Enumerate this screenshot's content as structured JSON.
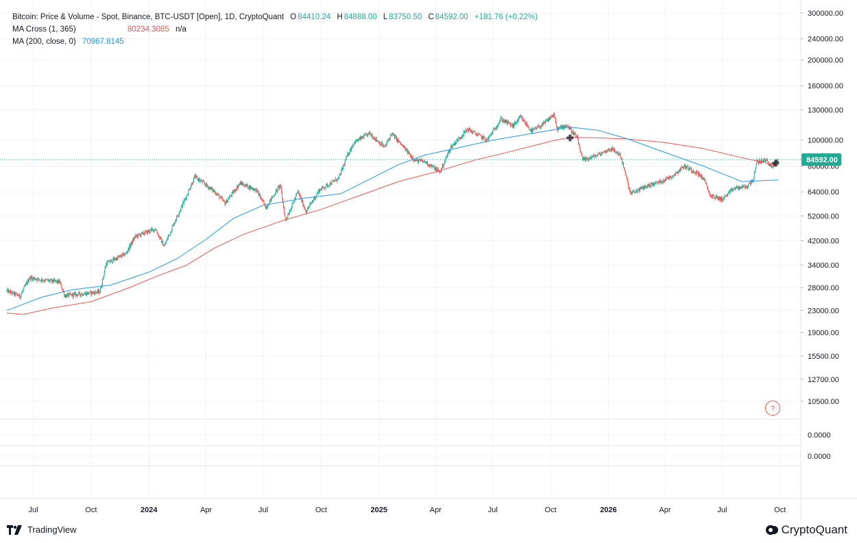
{
  "legend": {
    "title": "Bitcoin: Price & Volume - Spot, Binance, BTC-USDT [Open], 1D, CryptoQuant",
    "o_label": "O",
    "o_value": "84410.24",
    "h_label": "H",
    "h_value": "84888.00",
    "l_label": "L",
    "l_value": "83750.50",
    "c_label": "C",
    "c_value": "84592.00",
    "change": "+181.76 (+0.22%)",
    "ma_cross_label": "MA Cross (1, 365)",
    "ma_cross_value": "80234.3085",
    "ma_cross_na": "n/a",
    "ma200_label": "MA (200, close, 0)",
    "ma200_value": "70967.8145"
  },
  "price_tag": "84592.00",
  "help_badge": "?",
  "branding": {
    "tradingview": "TradingView",
    "cryptoquant": "CryptoQuant"
  },
  "colors": {
    "up": "#22ab94",
    "down": "#f05350",
    "ma365": "#f05350",
    "ma200": "#2196f3",
    "grid": "#f0f3fa",
    "axis_text": "#131722"
  },
  "chart_data": {
    "type": "candlestick",
    "title": "Bitcoin: Price & Volume - Spot, Binance, BTC-USDT [Open], 1D, CryptoQuant",
    "y_scale": "log",
    "ylim": [
      9000,
      320000
    ],
    "y_ticks": [
      "300000.00",
      "240000.00",
      "200000.00",
      "160000.00",
      "130000.00",
      "100000.00",
      "80000.00",
      "64000.00",
      "52000.00",
      "42000.00",
      "34000.00",
      "28000.00",
      "23000.00",
      "19000.00",
      "15500.00",
      "12700.00",
      "10500.00"
    ],
    "sub_pane_ticks": [
      "0.0000",
      "0.0000"
    ],
    "x_ticks": [
      {
        "label": "Jul",
        "date": "2023-07-01"
      },
      {
        "label": "Oct",
        "date": "2023-10-01"
      },
      {
        "label": "2024",
        "date": "2024-01-01"
      },
      {
        "label": "Apr",
        "date": "2024-04-01"
      },
      {
        "label": "Jul",
        "date": "2024-07-01"
      },
      {
        "label": "Oct",
        "date": "2024-10-01"
      },
      {
        "label": "2025",
        "date": "2025-01-01"
      },
      {
        "label": "Apr",
        "date": "2025-04-01"
      },
      {
        "label": "Jul",
        "date": "2025-07-01"
      },
      {
        "label": "Oct",
        "date": "2025-10-01"
      },
      {
        "label": "2026",
        "date": "2026-01-01"
      },
      {
        "label": "Apr",
        "date": "2026-04-01"
      },
      {
        "label": "Jul",
        "date": "2026-07-01"
      },
      {
        "label": "Oct",
        "date": "2026-10-01"
      }
    ],
    "x_range": [
      "2023-05-20",
      "2026-11-03"
    ],
    "last_close": 84592.0,
    "price_path": [
      {
        "date": "2023-05-20",
        "close": 27200
      },
      {
        "date": "2023-06-10",
        "close": 26000
      },
      {
        "date": "2023-06-25",
        "close": 30500
      },
      {
        "date": "2023-07-20",
        "close": 29800
      },
      {
        "date": "2023-08-12",
        "close": 29400
      },
      {
        "date": "2023-08-20",
        "close": 26100
      },
      {
        "date": "2023-09-15",
        "close": 26500
      },
      {
        "date": "2023-10-15",
        "close": 27000
      },
      {
        "date": "2023-10-25",
        "close": 34500
      },
      {
        "date": "2023-11-25",
        "close": 37500
      },
      {
        "date": "2023-12-10",
        "close": 43500
      },
      {
        "date": "2024-01-11",
        "close": 46500
      },
      {
        "date": "2024-01-25",
        "close": 40000
      },
      {
        "date": "2024-02-15",
        "close": 52000
      },
      {
        "date": "2024-03-01",
        "close": 62000
      },
      {
        "date": "2024-03-14",
        "close": 73000
      },
      {
        "date": "2024-04-15",
        "close": 64000
      },
      {
        "date": "2024-05-01",
        "close": 58000
      },
      {
        "date": "2024-05-25",
        "close": 69000
      },
      {
        "date": "2024-06-20",
        "close": 65000
      },
      {
        "date": "2024-07-05",
        "close": 56000
      },
      {
        "date": "2024-07-28",
        "close": 68000
      },
      {
        "date": "2024-08-05",
        "close": 50000
      },
      {
        "date": "2024-08-25",
        "close": 64000
      },
      {
        "date": "2024-09-07",
        "close": 54000
      },
      {
        "date": "2024-09-28",
        "close": 65000
      },
      {
        "date": "2024-10-29",
        "close": 72000
      },
      {
        "date": "2024-11-12",
        "close": 88000
      },
      {
        "date": "2024-11-22",
        "close": 98000
      },
      {
        "date": "2024-12-17",
        "close": 106000
      },
      {
        "date": "2025-01-10",
        "close": 94000
      },
      {
        "date": "2025-01-21",
        "close": 106000
      },
      {
        "date": "2025-02-27",
        "close": 84000
      },
      {
        "date": "2025-03-15",
        "close": 83000
      },
      {
        "date": "2025-04-08",
        "close": 76000
      },
      {
        "date": "2025-04-25",
        "close": 94000
      },
      {
        "date": "2025-05-22",
        "close": 110000
      },
      {
        "date": "2025-06-22",
        "close": 100000
      },
      {
        "date": "2025-07-14",
        "close": 120000
      },
      {
        "date": "2025-08-02",
        "close": 113000
      },
      {
        "date": "2025-08-14",
        "close": 122000
      },
      {
        "date": "2025-09-01",
        "close": 108000
      },
      {
        "date": "2025-09-20",
        "close": 115000
      },
      {
        "date": "2025-10-06",
        "close": 125000
      },
      {
        "date": "2025-10-11",
        "close": 110000
      },
      {
        "date": "2025-10-27",
        "close": 114000
      },
      {
        "date": "2025-11-12",
        "close": 102000
      },
      {
        "date": "2025-11-21",
        "close": 84000
      },
      {
        "date": "2025-12-15",
        "close": 88000
      },
      {
        "date": "2026-01-05",
        "close": 93000
      },
      {
        "date": "2026-01-20",
        "close": 88000
      },
      {
        "date": "2026-02-05",
        "close": 63000
      },
      {
        "date": "2026-03-01",
        "close": 67000
      },
      {
        "date": "2026-03-25",
        "close": 70000
      },
      {
        "date": "2026-04-15",
        "close": 74000
      },
      {
        "date": "2026-05-01",
        "close": 80000
      },
      {
        "date": "2026-05-20",
        "close": 76000
      },
      {
        "date": "2026-06-01",
        "close": 72000
      },
      {
        "date": "2026-06-12",
        "close": 62000
      },
      {
        "date": "2026-07-01",
        "close": 60000
      },
      {
        "date": "2026-07-20",
        "close": 66000
      },
      {
        "date": "2026-08-10",
        "close": 67000
      },
      {
        "date": "2026-08-20",
        "close": 72000
      },
      {
        "date": "2026-08-25",
        "close": 83000
      },
      {
        "date": "2026-09-10",
        "close": 84000
      },
      {
        "date": "2026-09-18",
        "close": 79000
      },
      {
        "date": "2026-09-28",
        "close": 84592
      }
    ],
    "series": [
      {
        "name": "MA Cross (1, 365)",
        "color": "#f05350",
        "points": [
          {
            "date": "2023-05-20",
            "value": 22500
          },
          {
            "date": "2023-06-15",
            "value": 22200
          },
          {
            "date": "2023-08-01",
            "value": 23500
          },
          {
            "date": "2023-10-01",
            "value": 24800
          },
          {
            "date": "2023-12-01",
            "value": 28000
          },
          {
            "date": "2024-01-15",
            "value": 31000
          },
          {
            "date": "2024-03-01",
            "value": 34000
          },
          {
            "date": "2024-04-15",
            "value": 39500
          },
          {
            "date": "2024-06-01",
            "value": 44500
          },
          {
            "date": "2024-08-01",
            "value": 50000
          },
          {
            "date": "2024-10-01",
            "value": 55000
          },
          {
            "date": "2024-12-01",
            "value": 62000
          },
          {
            "date": "2025-02-01",
            "value": 70000
          },
          {
            "date": "2025-04-01",
            "value": 76000
          },
          {
            "date": "2025-06-01",
            "value": 84000
          },
          {
            "date": "2025-08-01",
            "value": 91000
          },
          {
            "date": "2025-10-01",
            "value": 99000
          },
          {
            "date": "2025-11-01",
            "value": 102500
          },
          {
            "date": "2025-12-15",
            "value": 102000
          },
          {
            "date": "2026-02-01",
            "value": 101000
          },
          {
            "date": "2026-04-01",
            "value": 98000
          },
          {
            "date": "2026-06-01",
            "value": 93000
          },
          {
            "date": "2026-08-01",
            "value": 86000
          },
          {
            "date": "2026-09-28",
            "value": 80234.3085
          }
        ]
      },
      {
        "name": "MA (200, close, 0)",
        "color": "#2196f3",
        "points": [
          {
            "date": "2023-05-20",
            "value": 23000
          },
          {
            "date": "2023-07-15",
            "value": 25800
          },
          {
            "date": "2023-09-01",
            "value": 27500
          },
          {
            "date": "2023-11-01",
            "value": 28600
          },
          {
            "date": "2024-01-01",
            "value": 32000
          },
          {
            "date": "2024-02-15",
            "value": 36000
          },
          {
            "date": "2024-04-01",
            "value": 42500
          },
          {
            "date": "2024-05-15",
            "value": 51000
          },
          {
            "date": "2024-07-01",
            "value": 57000
          },
          {
            "date": "2024-09-01",
            "value": 60500
          },
          {
            "date": "2024-11-01",
            "value": 63000
          },
          {
            "date": "2024-12-15",
            "value": 71000
          },
          {
            "date": "2025-02-01",
            "value": 81000
          },
          {
            "date": "2025-03-15",
            "value": 88000
          },
          {
            "date": "2025-05-01",
            "value": 93000
          },
          {
            "date": "2025-07-01",
            "value": 100000
          },
          {
            "date": "2025-09-01",
            "value": 106000
          },
          {
            "date": "2025-11-01",
            "value": 112000
          },
          {
            "date": "2025-12-15",
            "value": 109000
          },
          {
            "date": "2026-02-01",
            "value": 101000
          },
          {
            "date": "2026-04-01",
            "value": 90000
          },
          {
            "date": "2026-06-01",
            "value": 80000
          },
          {
            "date": "2026-08-01",
            "value": 70000
          },
          {
            "date": "2026-09-28",
            "value": 70967.8145
          }
        ]
      }
    ],
    "grid": true,
    "legend": "top-left"
  }
}
